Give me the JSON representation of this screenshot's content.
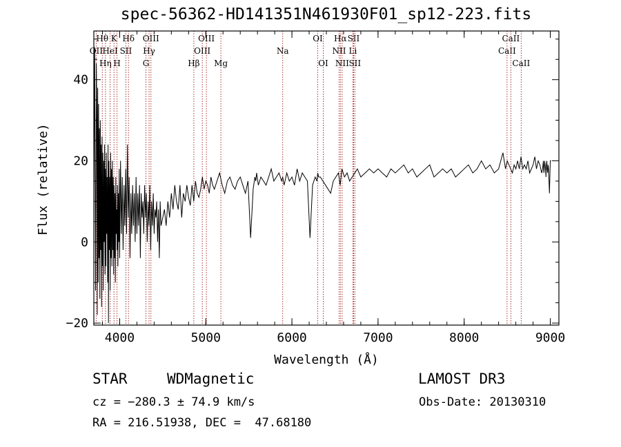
{
  "chart_data": {
    "type": "line",
    "title": "spec-56362-HD141351N461930F01_sp12-223.fits",
    "xlabel": "Wavelength (Å)",
    "ylabel": "Flux (relative)",
    "xlim": [
      3700,
      9100
    ],
    "ylim": [
      -20.5,
      52
    ],
    "xticks": [
      4000,
      5000,
      6000,
      7000,
      8000,
      9000
    ],
    "yticks": [
      -20,
      0,
      20,
      40
    ],
    "xtick_labels": [
      "4000",
      "5000",
      "6000",
      "7000",
      "8000",
      "9000"
    ],
    "ytick_labels": [
      "−20",
      "0",
      "20",
      "40"
    ],
    "grid": false,
    "line_color": "#000000",
    "marker_color": "#a01818",
    "spectral_lines": [
      {
        "label": "OII",
        "wavelength": 3727,
        "row": 2
      },
      {
        "label": "Hθ",
        "wavelength": 3798,
        "row": 1
      },
      {
        "label": "Hη",
        "wavelength": 3835,
        "row": 3
      },
      {
        "label": "HeI",
        "wavelength": 3889,
        "row": 2
      },
      {
        "label": "K",
        "wavelength": 3934,
        "row": 1
      },
      {
        "label": "H",
        "wavelength": 3969,
        "row": 3
      },
      {
        "label": "SII",
        "wavelength": 4072,
        "row": 2
      },
      {
        "label": "Hδ",
        "wavelength": 4102,
        "row": 1
      },
      {
        "label": "G",
        "wavelength": 4305,
        "row": 3
      },
      {
        "label": "Hγ",
        "wavelength": 4341,
        "row": 2
      },
      {
        "label": "OIII",
        "wavelength": 4363,
        "row": 1
      },
      {
        "label": "Hβ",
        "wavelength": 4861,
        "row": 3
      },
      {
        "label": "OIII",
        "wavelength": 4959,
        "row": 2
      },
      {
        "label": "OIII",
        "wavelength": 5007,
        "row": 1
      },
      {
        "label": "Mg",
        "wavelength": 5175,
        "row": 3
      },
      {
        "label": "Na",
        "wavelength": 5893,
        "row": 2
      },
      {
        "label": "OI",
        "wavelength": 6300,
        "row": 1
      },
      {
        "label": "OI",
        "wavelength": 6364,
        "row": 3
      },
      {
        "label": "NII",
        "wavelength": 6548,
        "row": 2
      },
      {
        "label": "Hα",
        "wavelength": 6563,
        "row": 1
      },
      {
        "label": "NII",
        "wavelength": 6583,
        "row": 3
      },
      {
        "label": "Li",
        "wavelength": 6708,
        "row": 2
      },
      {
        "label": "SII",
        "wavelength": 6716,
        "row": 1
      },
      {
        "label": "SII",
        "wavelength": 6731,
        "row": 3
      },
      {
        "label": "CaII",
        "wavelength": 8498,
        "row": 2
      },
      {
        "label": "CaII",
        "wavelength": 8542,
        "row": 1
      },
      {
        "label": "CaII",
        "wavelength": 8662,
        "row": 3
      }
    ],
    "series": [
      {
        "x": [
          3700,
          3710,
          3720,
          3730,
          3735,
          3740,
          3745,
          3750,
          3755,
          3760,
          3765,
          3770,
          3775,
          3780,
          3785,
          3790,
          3795,
          3800,
          3805,
          3810,
          3815,
          3820,
          3825,
          3830,
          3835,
          3840,
          3845,
          3850,
          3855,
          3860,
          3865,
          3870,
          3875,
          3880,
          3885,
          3890,
          3895,
          3900,
          3905,
          3910,
          3915,
          3920,
          3925,
          3930,
          3935,
          3940,
          3945,
          3950,
          3955,
          3960,
          3965,
          3970,
          3975,
          3980,
          3985,
          3990,
          3995,
          4000,
          4010,
          4020,
          4030,
          4040,
          4050,
          4060,
          4070,
          4080,
          4090,
          4100,
          4110,
          4120,
          4130,
          4140,
          4150,
          4160,
          4170,
          4180,
          4190,
          4200,
          4210,
          4220,
          4230,
          4240,
          4250,
          4260,
          4270,
          4280,
          4290,
          4300,
          4310,
          4320,
          4330,
          4340,
          4350,
          4360,
          4370,
          4380,
          4390,
          4400,
          4410,
          4420,
          4430,
          4440,
          4450,
          4460,
          4470,
          4480,
          4500,
          4520,
          4540,
          4560,
          4580,
          4600,
          4620,
          4640,
          4660,
          4680,
          4700,
          4720,
          4740,
          4760,
          4780,
          4800,
          4820,
          4840,
          4860,
          4880,
          4900,
          4920,
          4940,
          4960,
          4980,
          5000,
          5020,
          5040,
          5060,
          5080,
          5100,
          5130,
          5160,
          5190,
          5220,
          5250,
          5280,
          5310,
          5340,
          5370,
          5400,
          5430,
          5460,
          5490,
          5520,
          5550,
          5570,
          5580,
          5590,
          5610,
          5640,
          5670,
          5700,
          5730,
          5760,
          5790,
          5820,
          5850,
          5880,
          5893,
          5910,
          5940,
          5970,
          6000,
          6030,
          6060,
          6090,
          6120,
          6150,
          6180,
          6210,
          6240,
          6270,
          6290,
          6300,
          6310,
          6330,
          6360,
          6390,
          6420,
          6450,
          6480,
          6510,
          6540,
          6560,
          6580,
          6610,
          6640,
          6670,
          6700,
          6730,
          6760,
          6800,
          6850,
          6900,
          6950,
          7000,
          7050,
          7100,
          7150,
          7200,
          7250,
          7300,
          7350,
          7400,
          7450,
          7500,
          7550,
          7600,
          7650,
          7700,
          7750,
          7800,
          7850,
          7900,
          7950,
          8000,
          8050,
          8100,
          8150,
          8200,
          8250,
          8300,
          8350,
          8400,
          8450,
          8480,
          8500,
          8520,
          8540,
          8560,
          8580,
          8600,
          8620,
          8640,
          8660,
          8680,
          8700,
          8720,
          8740,
          8760,
          8780,
          8800,
          8820,
          8840,
          8860,
          8880,
          8900,
          8910,
          8915,
          8920,
          8925,
          8930,
          8935,
          8940,
          8945,
          8950,
          8955,
          8960,
          8965,
          8970,
          8975,
          8980,
          8990,
          9000,
          9010
        ],
        "y": [
          12,
          48,
          -12,
          44,
          30,
          -18,
          38,
          -10,
          34,
          -4,
          28,
          -14,
          30,
          -2,
          24,
          -16,
          26,
          -6,
          22,
          -12,
          20,
          0,
          24,
          -8,
          18,
          -6,
          22,
          2,
          16,
          -10,
          24,
          -20,
          20,
          -2,
          16,
          -12,
          22,
          -4,
          18,
          -6,
          20,
          -2,
          16,
          -8,
          14,
          -4,
          12,
          -10,
          16,
          2,
          8,
          -2,
          14,
          -6,
          12,
          0,
          18,
          -4,
          20,
          2,
          16,
          -2,
          14,
          4,
          18,
          2,
          24,
          6,
          16,
          -4,
          12,
          2,
          14,
          4,
          12,
          0,
          16,
          2,
          12,
          4,
          14,
          -4,
          12,
          6,
          10,
          2,
          14,
          6,
          12,
          0,
          10,
          4,
          14,
          -2,
          10,
          4,
          12,
          2,
          8,
          6,
          10,
          0,
          8,
          -4,
          10,
          4,
          6,
          8,
          4,
          10,
          6,
          12,
          8,
          14,
          10,
          8,
          14,
          6,
          12,
          10,
          14,
          11,
          9,
          14,
          10,
          15,
          12,
          11,
          13,
          16,
          13,
          15,
          14,
          12,
          16,
          14,
          13,
          15,
          17,
          14,
          12,
          15,
          16,
          14,
          13,
          15,
          16,
          14,
          12,
          15,
          1,
          13,
          16,
          15,
          17,
          14,
          16,
          15,
          14,
          16,
          18,
          15,
          16,
          17,
          15,
          16,
          14,
          17,
          15,
          16,
          14,
          18,
          15,
          17,
          16,
          15,
          1,
          14,
          16,
          15,
          17,
          16,
          16,
          15,
          14,
          13,
          12,
          15,
          16,
          17,
          14,
          18,
          16,
          17,
          15,
          16,
          17,
          18,
          16,
          17,
          18,
          17,
          18,
          17,
          16,
          18,
          17,
          18,
          19,
          17,
          18,
          16,
          17,
          18,
          19,
          16,
          17,
          18,
          17,
          18,
          16,
          17,
          18,
          19,
          17,
          18,
          20,
          18,
          19,
          17,
          18,
          22,
          18,
          20,
          19,
          18,
          17,
          19,
          18,
          20,
          18,
          21,
          18,
          19,
          18,
          20,
          17,
          18,
          19,
          21,
          18,
          20,
          19,
          17,
          18,
          19,
          20,
          17,
          18,
          20,
          19,
          18,
          16,
          19,
          20,
          18,
          17,
          19,
          18,
          12,
          20,
          20
        ]
      }
    ]
  },
  "footer": {
    "object_class": "STAR",
    "subclass": "WDMagnetic",
    "survey": "LAMOST DR3",
    "redshift": "cz = −280.3 ± 74.9 km/s",
    "obs_date": "Obs-Date: 20130310",
    "coords": "RA = 216.51938, DEC =  47.68180"
  }
}
